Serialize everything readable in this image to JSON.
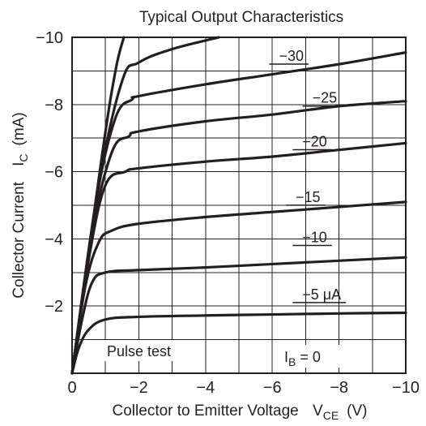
{
  "chart_data": {
    "type": "line",
    "title": "Typical Output Characteristics",
    "xlabel": "Collector to Emitter Voltage",
    "xlabel_symbol_main": "V",
    "xlabel_symbol_sub": "CE",
    "xlabel_unit": "(V)",
    "ylabel": "Collector Current",
    "ylabel_symbol_main": "I",
    "ylabel_symbol_sub": "C",
    "ylabel_unit": "(mA)",
    "xlim": [
      0,
      -10
    ],
    "ylim": [
      0,
      -10
    ],
    "x_ticks": [
      {
        "value": 0,
        "label": "0"
      },
      {
        "value": -2,
        "label": "−2"
      },
      {
        "value": -4,
        "label": "−4"
      },
      {
        "value": -6,
        "label": "−6"
      },
      {
        "value": -8,
        "label": "−8"
      },
      {
        "value": -10,
        "label": "−10"
      }
    ],
    "y_ticks": [
      {
        "value": -2,
        "label": "−2"
      },
      {
        "value": -4,
        "label": "−4"
      },
      {
        "value": -6,
        "label": "−6"
      },
      {
        "value": -8,
        "label": "−8"
      },
      {
        "value": -10,
        "label": "−10"
      }
    ],
    "grid": true,
    "grid_step_x": -1,
    "grid_step_y": -1,
    "annotations": {
      "pulse_test": "Pulse test",
      "ib_zero_main": "I",
      "ib_zero_sub": "B",
      "ib_zero_rest": " = 0"
    },
    "series": [
      {
        "label": "−5 μA",
        "label_at": [
          -6.9,
          -2.2
        ],
        "points": [
          [
            0,
            0
          ],
          [
            -0.2,
            -0.75
          ],
          [
            -0.5,
            -1.3
          ],
          [
            -1,
            -1.6
          ],
          [
            -2,
            -1.68
          ],
          [
            -4,
            -1.72
          ],
          [
            -6,
            -1.75
          ],
          [
            -8,
            -1.78
          ],
          [
            -10,
            -1.8
          ]
        ]
      },
      {
        "label": "−10",
        "label_at": [
          -6.9,
          -3.9
        ],
        "points": [
          [
            0,
            0
          ],
          [
            -0.3,
            -1.6
          ],
          [
            -0.6,
            -2.7
          ],
          [
            -1,
            -3.0
          ],
          [
            -2,
            -3.07
          ],
          [
            -4,
            -3.15
          ],
          [
            -6,
            -3.25
          ],
          [
            -8,
            -3.35
          ],
          [
            -10,
            -3.45
          ]
        ]
      },
      {
        "label": "−15",
        "label_at": [
          -6.7,
          -5.1
        ],
        "points": [
          [
            0,
            0
          ],
          [
            -0.4,
            -2.6
          ],
          [
            -0.8,
            -3.9
          ],
          [
            -1.2,
            -4.25
          ],
          [
            -2,
            -4.45
          ],
          [
            -4,
            -4.65
          ],
          [
            -6,
            -4.8
          ],
          [
            -8,
            -4.95
          ],
          [
            -10,
            -5.1
          ]
        ]
      },
      {
        "label": "−20",
        "label_at": [
          -6.9,
          -6.75
        ],
        "points": [
          [
            0,
            0
          ],
          [
            -0.5,
            -3.4
          ],
          [
            -1,
            -5.6
          ],
          [
            -1.6,
            -6.0
          ],
          [
            -2,
            -6.1
          ],
          [
            -4,
            -6.3
          ],
          [
            -6,
            -6.45
          ],
          [
            -8,
            -6.65
          ],
          [
            -10,
            -6.85
          ]
        ]
      },
      {
        "label": "−25",
        "label_at": [
          -7.2,
          -8.05
        ],
        "points": [
          [
            0,
            0
          ],
          [
            -0.6,
            -4.2
          ],
          [
            -1.2,
            -6.6
          ],
          [
            -1.7,
            -7.05
          ],
          [
            -2,
            -7.2
          ],
          [
            -4,
            -7.5
          ],
          [
            -6,
            -7.7
          ],
          [
            -8,
            -7.95
          ],
          [
            -10,
            -8.1
          ]
        ]
      },
      {
        "label": "−30",
        "label_at": [
          -6.2,
          -9.3
        ],
        "points": [
          [
            0,
            0
          ],
          [
            -0.7,
            -5.0
          ],
          [
            -1.3,
            -7.6
          ],
          [
            -1.8,
            -8.15
          ],
          [
            -2,
            -8.25
          ],
          [
            -4,
            -8.6
          ],
          [
            -6,
            -8.9
          ],
          [
            -8,
            -9.2
          ],
          [
            -10,
            -9.55
          ]
        ]
      },
      {
        "label": "",
        "points": [
          [
            0,
            0
          ],
          [
            -0.8,
            -5.6
          ],
          [
            -1.5,
            -8.7
          ],
          [
            -2,
            -9.25
          ],
          [
            -3,
            -9.65
          ],
          [
            -4.4,
            -10.0
          ]
        ]
      },
      {
        "label": "",
        "points": [
          [
            0,
            0
          ],
          [
            -0.9,
            -6.5
          ],
          [
            -1.3,
            -9.0
          ],
          [
            -1.55,
            -10.0
          ]
        ]
      }
    ]
  }
}
